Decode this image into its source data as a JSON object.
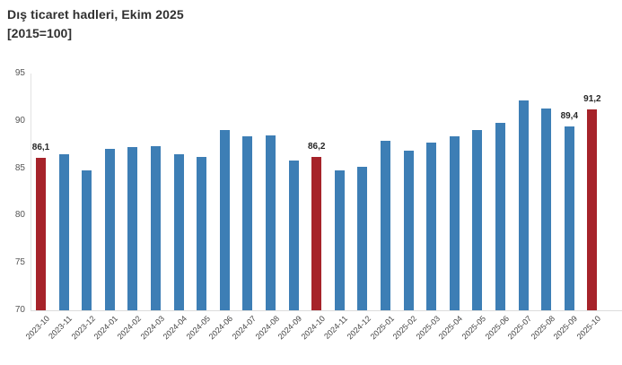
{
  "header": {
    "title": "Dış ticaret hadleri, Ekim 2025",
    "subtitle": "[2015=100]"
  },
  "chart_data": {
    "type": "bar",
    "title": "Dış ticaret hadleri, Ekim 2025",
    "subtitle": "[2015=100]",
    "xlabel": "",
    "ylabel": "",
    "ylim": [
      70,
      95
    ],
    "yticks": [
      70,
      75,
      80,
      85,
      90,
      95
    ],
    "grid": false,
    "legend_position": "none",
    "categories": [
      "2023-10",
      "2023-11",
      "2023-12",
      "2024-01",
      "2024-02",
      "2024-03",
      "2024-04",
      "2024-05",
      "2024-06",
      "2024-07",
      "2024-08",
      "2024-09",
      "2024-10",
      "2024-11",
      "2024-12",
      "2025-01",
      "2025-02",
      "2025-03",
      "2025-04",
      "2025-05",
      "2025-06",
      "2025-07",
      "2025-08",
      "2025-09",
      "2025-10"
    ],
    "values": [
      86.1,
      86.5,
      84.8,
      87.0,
      87.2,
      87.3,
      86.5,
      86.2,
      89.0,
      88.4,
      88.5,
      85.8,
      86.2,
      84.8,
      85.2,
      87.9,
      86.9,
      87.7,
      88.4,
      89.0,
      89.8,
      92.2,
      91.3,
      89.4,
      91.2
    ],
    "highlight_indices": [
      0,
      12,
      24
    ],
    "data_labels": [
      {
        "index": 0,
        "text": "86,1"
      },
      {
        "index": 12,
        "text": "86,2"
      },
      {
        "index": 23,
        "text": "89,4"
      },
      {
        "index": 24,
        "text": "91,2"
      }
    ],
    "colors": {
      "bar": "#3d7eb5",
      "highlight": "#a6232a",
      "axis_line": "#e2e2e2",
      "tick_text": "#555555",
      "label_text": "#262626"
    }
  }
}
